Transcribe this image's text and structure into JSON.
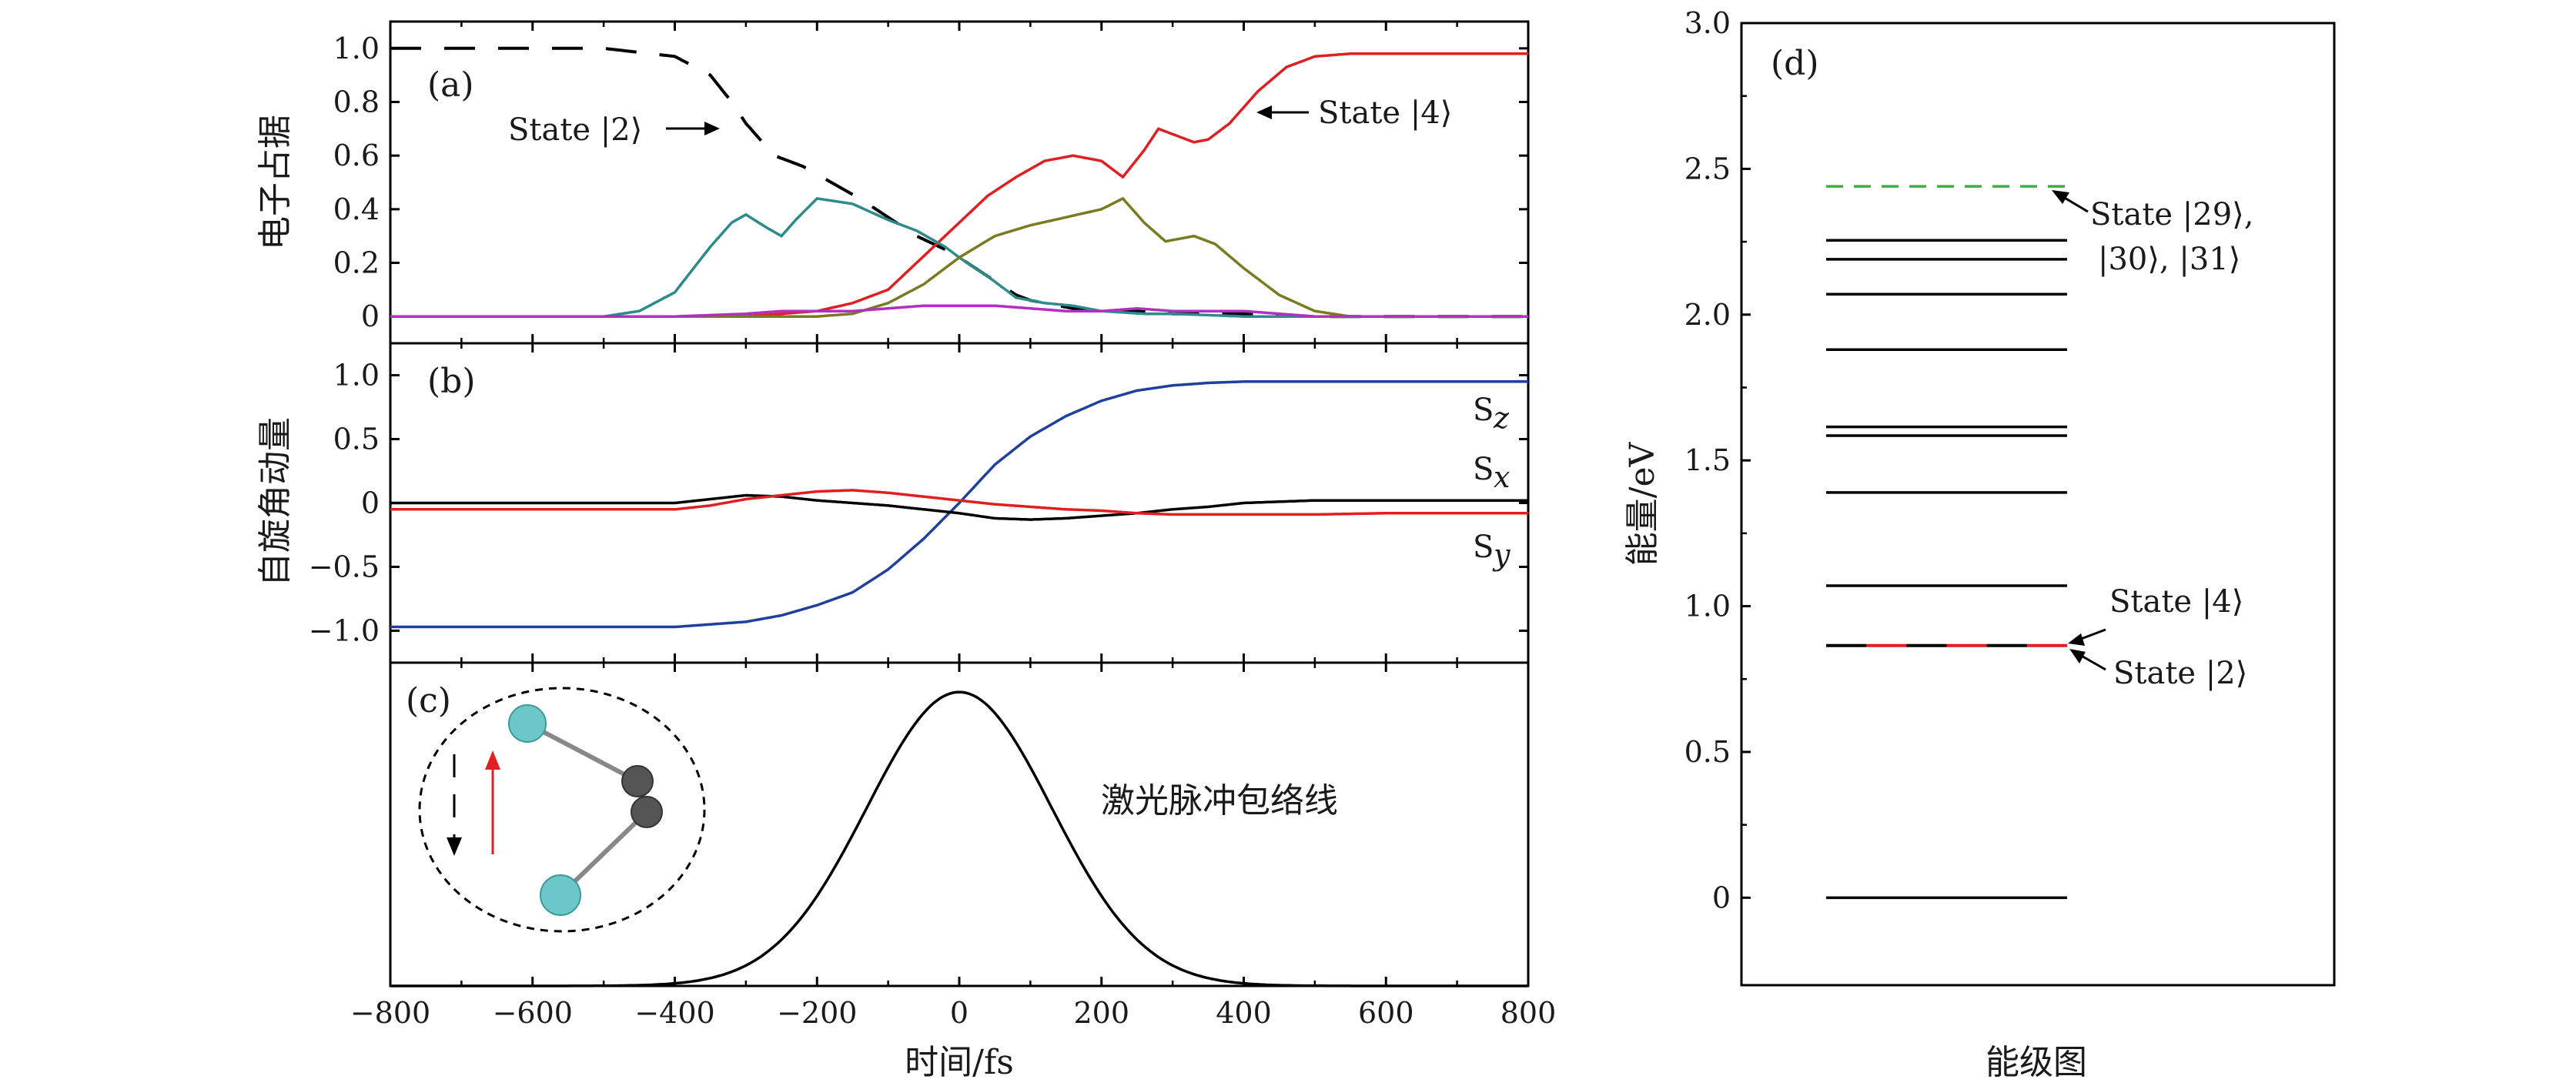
{
  "panel_labels": {
    "a": "(a)",
    "b": "(b)",
    "c": "(c)",
    "d": "(d)"
  },
  "axes": {
    "x_label": "时间/fs",
    "a_ylabel": "电子占据",
    "b_ylabel": "自旋角动量",
    "d_ylabel": "能量/eV",
    "d_xlabel": "能级图"
  },
  "annotations": {
    "state2_a": "State |2⟩",
    "state4_a": "State |4⟩",
    "sz": "S_z",
    "sx": "S_x",
    "sy": "S_y",
    "laser": "激光脉冲包络线",
    "state29_line1": "State |29⟩,",
    "state29_line2": "|30⟩, |31⟩",
    "state4_d": "State |4⟩",
    "state2_d": "State |2⟩"
  },
  "colors": {
    "state2": "#000000",
    "state4": "#e02020",
    "teal": "#2e8b8b",
    "olive": "#7a7a20",
    "purple": "#b030c0",
    "sz": "#2040a0",
    "sx": "#000000",
    "sy": "#e02020",
    "state29": "#3cb040"
  },
  "chart_data": [
    {
      "id": "a",
      "type": "line",
      "xlim": [
        -800,
        800
      ],
      "ylim": [
        -0.1,
        1.1
      ],
      "xticks": [
        -800,
        -600,
        -400,
        -200,
        0,
        200,
        400,
        600,
        800
      ],
      "xtick_labels": [
        "−800",
        "−600",
        "−400",
        "−200",
        "0",
        "200",
        "400",
        "600",
        "800"
      ],
      "yticks": [
        0,
        0.2,
        0.4,
        0.6,
        0.8,
        1.0
      ],
      "ytick_labels": [
        "0",
        "0.2",
        "0.4",
        "0.6",
        "0.8",
        "1.0"
      ],
      "series": [
        {
          "key": "state2",
          "style": "dashed",
          "x": [
            -800,
            -500,
            -400,
            -350,
            -320,
            -300,
            -260,
            -220,
            -180,
            -140,
            -100,
            -60,
            -20,
            0,
            40,
            80,
            100,
            160,
            200,
            260,
            300,
            400,
            500,
            600,
            700,
            800
          ],
          "y": [
            1.0,
            1.0,
            0.97,
            0.9,
            0.8,
            0.72,
            0.6,
            0.56,
            0.5,
            0.44,
            0.37,
            0.3,
            0.25,
            0.22,
            0.15,
            0.08,
            0.06,
            0.03,
            0.02,
            0.02,
            0.01,
            0.01,
            0.0,
            0.0,
            0.0,
            0.0
          ]
        },
        {
          "key": "state4",
          "x": [
            -800,
            -300,
            -200,
            -150,
            -100,
            -60,
            -20,
            0,
            40,
            80,
            120,
            160,
            200,
            230,
            260,
            280,
            300,
            330,
            350,
            380,
            420,
            460,
            500,
            550,
            600,
            700,
            800
          ],
          "y": [
            0.0,
            0.0,
            0.02,
            0.05,
            0.1,
            0.2,
            0.3,
            0.35,
            0.45,
            0.52,
            0.58,
            0.6,
            0.58,
            0.52,
            0.62,
            0.7,
            0.68,
            0.65,
            0.66,
            0.72,
            0.84,
            0.93,
            0.97,
            0.98,
            0.98,
            0.98,
            0.98
          ]
        },
        {
          "key": "teal",
          "x": [
            -800,
            -500,
            -450,
            -400,
            -350,
            -320,
            -300,
            -270,
            -250,
            -230,
            -200,
            -150,
            -100,
            -60,
            -20,
            0,
            40,
            80,
            120,
            160,
            200,
            260,
            300,
            400,
            500,
            600,
            700,
            800
          ],
          "y": [
            0.0,
            0.0,
            0.02,
            0.09,
            0.26,
            0.35,
            0.38,
            0.33,
            0.3,
            0.36,
            0.44,
            0.42,
            0.36,
            0.32,
            0.26,
            0.22,
            0.15,
            0.07,
            0.05,
            0.04,
            0.02,
            0.01,
            0.01,
            0.0,
            0.0,
            0.0,
            0.0,
            0.0
          ]
        },
        {
          "key": "olive",
          "x": [
            -800,
            -200,
            -150,
            -100,
            -50,
            0,
            50,
            100,
            150,
            200,
            230,
            260,
            290,
            330,
            360,
            400,
            450,
            500,
            550,
            600,
            700,
            800
          ],
          "y": [
            0.0,
            0.0,
            0.01,
            0.05,
            0.12,
            0.22,
            0.3,
            0.34,
            0.37,
            0.4,
            0.44,
            0.35,
            0.28,
            0.3,
            0.27,
            0.18,
            0.08,
            0.02,
            0.0,
            0.0,
            0.0,
            0.0
          ]
        },
        {
          "key": "purple",
          "x": [
            -800,
            -400,
            -300,
            -250,
            -200,
            -150,
            -100,
            -50,
            0,
            50,
            100,
            150,
            200,
            250,
            300,
            350,
            400,
            450,
            500,
            600,
            800
          ],
          "y": [
            0.0,
            0.0,
            0.01,
            0.02,
            0.02,
            0.02,
            0.03,
            0.04,
            0.04,
            0.04,
            0.03,
            0.02,
            0.02,
            0.03,
            0.02,
            0.02,
            0.02,
            0.01,
            0.0,
            0.0,
            0.0
          ]
        }
      ]
    },
    {
      "id": "b",
      "type": "line",
      "xlim": [
        -800,
        800
      ],
      "ylim": [
        -1.25,
        1.25
      ],
      "yticks": [
        -1.0,
        -0.5,
        0,
        0.5,
        1.0
      ],
      "ytick_labels": [
        "−1.0",
        "−0.5",
        "0",
        "0.5",
        "1.0"
      ],
      "series": [
        {
          "key": "sz",
          "x": [
            -800,
            -600,
            -400,
            -300,
            -250,
            -200,
            -150,
            -100,
            -50,
            0,
            50,
            100,
            150,
            200,
            250,
            300,
            350,
            400,
            500,
            600,
            700,
            800
          ],
          "y": [
            -0.97,
            -0.97,
            -0.97,
            -0.93,
            -0.88,
            -0.8,
            -0.7,
            -0.52,
            -0.28,
            0.0,
            0.3,
            0.52,
            0.68,
            0.8,
            0.88,
            0.92,
            0.94,
            0.95,
            0.95,
            0.95,
            0.95,
            0.95
          ]
        },
        {
          "key": "sx",
          "x": [
            -800,
            -400,
            -350,
            -300,
            -250,
            -200,
            -150,
            -100,
            -50,
            0,
            50,
            100,
            150,
            200,
            250,
            300,
            350,
            400,
            500,
            600,
            700,
            800
          ],
          "y": [
            0.0,
            0.0,
            0.03,
            0.06,
            0.05,
            0.02,
            0.0,
            -0.02,
            -0.05,
            -0.08,
            -0.12,
            -0.13,
            -0.12,
            -0.1,
            -0.08,
            -0.05,
            -0.03,
            0.0,
            0.02,
            0.02,
            0.02,
            0.02
          ]
        },
        {
          "key": "sy",
          "x": [
            -800,
            -400,
            -350,
            -300,
            -250,
            -200,
            -150,
            -100,
            -50,
            0,
            50,
            100,
            150,
            200,
            250,
            300,
            400,
            500,
            600,
            700,
            800
          ],
          "y": [
            -0.05,
            -0.05,
            -0.02,
            0.03,
            0.06,
            0.09,
            0.1,
            0.08,
            0.05,
            0.02,
            -0.01,
            -0.03,
            -0.05,
            -0.06,
            -0.08,
            -0.09,
            -0.09,
            -0.09,
            -0.08,
            -0.08,
            -0.08
          ]
        }
      ]
    },
    {
      "id": "c",
      "type": "line",
      "xlim": [
        -800,
        800
      ],
      "ylim": [
        0,
        1.1
      ],
      "series": [
        {
          "key": "envelope",
          "function": "gaussian",
          "center": 0,
          "width_fs": 130,
          "amplitude": 1.0,
          "baseline": 0.0
        }
      ]
    },
    {
      "id": "d",
      "type": "level-diagram",
      "ylim": [
        -0.3,
        3.0
      ],
      "yticks": [
        0,
        0.5,
        1.0,
        1.5,
        2.0,
        2.5,
        3.0
      ],
      "ytick_labels": [
        "0",
        "0.5",
        "1.0",
        "1.5",
        "2.0",
        "2.5",
        "3.0"
      ],
      "levels": [
        0.0,
        0.865,
        1.07,
        1.39,
        1.585,
        1.615,
        1.88,
        2.07,
        2.19,
        2.255
      ],
      "highlight_level": {
        "energy": 0.865,
        "colors": [
          "#000000",
          "#e02020"
        ]
      },
      "dashed_level": {
        "energy": 2.44
      }
    }
  ]
}
